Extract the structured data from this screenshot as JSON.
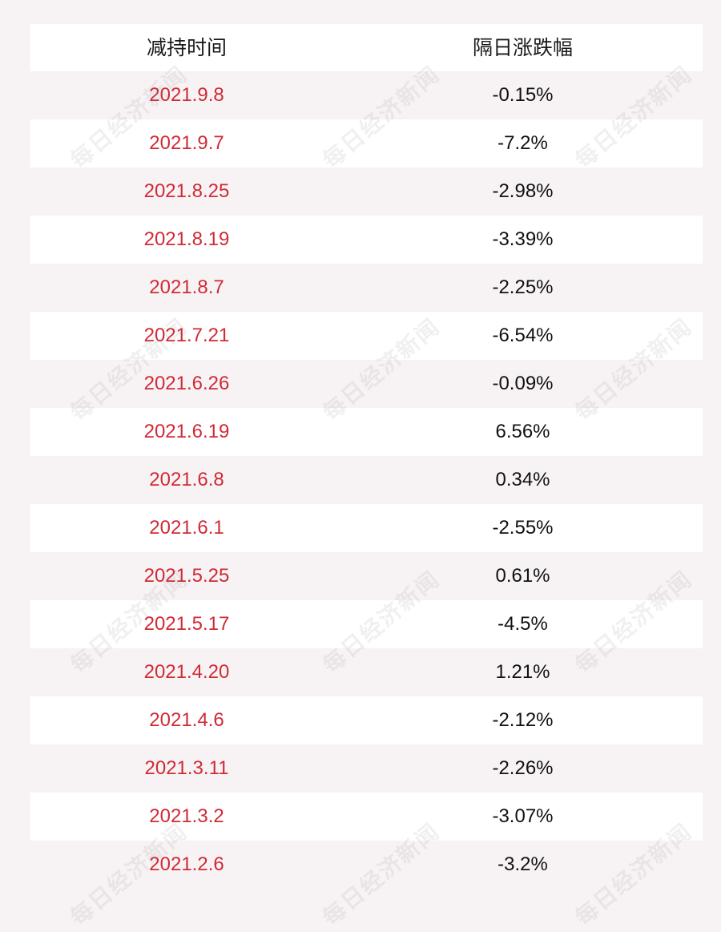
{
  "chart_data": {
    "type": "table",
    "columns": [
      "减持时间",
      "隔日涨跌幅"
    ],
    "rows": [
      {
        "date": "2021.9.8",
        "change": "-0.15%"
      },
      {
        "date": "2021.9.7",
        "change": "-7.2%"
      },
      {
        "date": "2021.8.25",
        "change": "-2.98%"
      },
      {
        "date": "2021.8.19",
        "change": "-3.39%"
      },
      {
        "date": "2021.8.7",
        "change": "-2.25%"
      },
      {
        "date": "2021.7.21",
        "change": "-6.54%"
      },
      {
        "date": "2021.6.26",
        "change": "-0.09%"
      },
      {
        "date": "2021.6.19",
        "change": "6.56%"
      },
      {
        "date": "2021.6.8",
        "change": "0.34%"
      },
      {
        "date": "2021.6.1",
        "change": "-2.55%"
      },
      {
        "date": "2021.5.25",
        "change": "0.61%"
      },
      {
        "date": "2021.5.17",
        "change": "-4.5%"
      },
      {
        "date": "2021.4.20",
        "change": "1.21%"
      },
      {
        "date": "2021.4.6",
        "change": "-2.12%"
      },
      {
        "date": "2021.3.11",
        "change": "-2.26%"
      },
      {
        "date": "2021.3.2",
        "change": "-3.07%"
      },
      {
        "date": "2021.2.6",
        "change": "-3.2%"
      }
    ],
    "colors": {
      "date_text": "#d02a36",
      "value_text": "#111111",
      "header_text": "#1a1a1a",
      "row_white": "#ffffff",
      "row_tint": "#f7f3f4"
    }
  },
  "watermark": {
    "text": "每日经济新闻"
  }
}
